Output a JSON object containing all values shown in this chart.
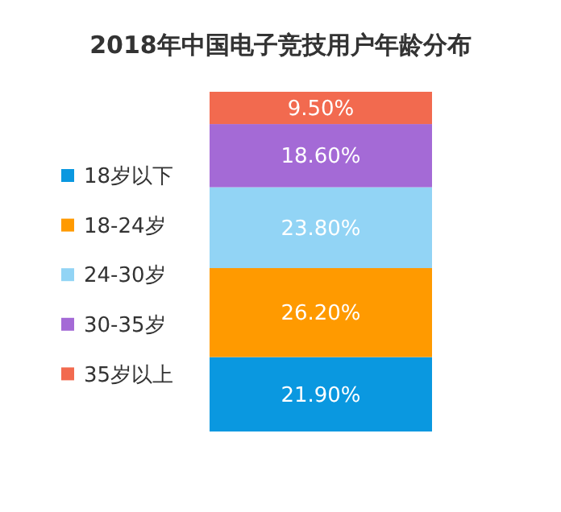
{
  "chart_data": {
    "type": "bar",
    "title": "2018年中国电子竞技用户年龄分布",
    "stacked": true,
    "categories": [
      null
    ],
    "ylim": [
      0,
      100
    ],
    "legend": "left",
    "series": [
      {
        "name": "18岁以下",
        "color": "#0a98e0",
        "values": [
          21.9
        ],
        "value_labels": [
          "21.90%"
        ]
      },
      {
        "name": "18-24岁",
        "color": "#ff9a00",
        "values": [
          26.2
        ],
        "value_labels": [
          "26.20%"
        ]
      },
      {
        "name": "24-30岁",
        "color": "#92d4f5",
        "values": [
          23.8
        ],
        "value_labels": [
          "23.80%"
        ]
      },
      {
        "name": "30-35岁",
        "color": "#a46ad6",
        "values": [
          18.6
        ],
        "value_labels": [
          "18.60%"
        ]
      },
      {
        "name": "35岁以上",
        "color": "#f26a4f",
        "values": [
          9.5
        ],
        "value_labels": [
          "9.50%"
        ]
      }
    ]
  }
}
